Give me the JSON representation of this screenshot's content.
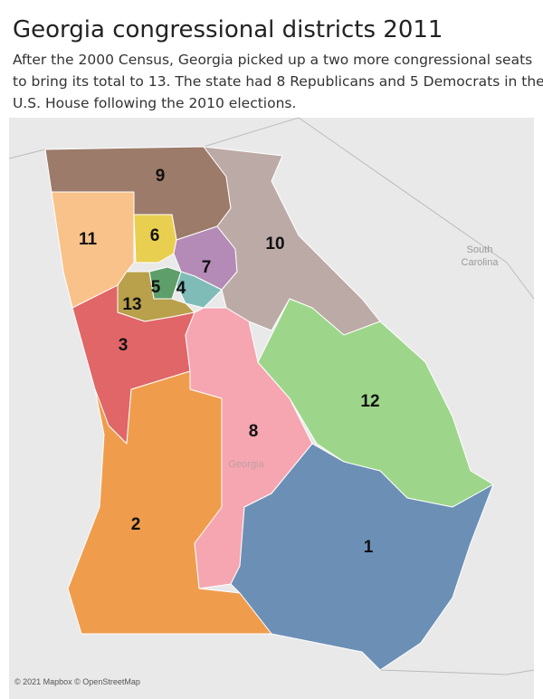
{
  "header": {
    "title": "Georgia congressional districts 2011",
    "subtitle_lines": [
      "After the 2000 Census, Georgia picked up a two more congressional seats",
      "to bring its total to 13. The state had 8 Republicans and 5 Democrats in the",
      "U.S. House following the 2010 elections."
    ]
  },
  "map": {
    "districts": [
      {
        "label": "1"
      },
      {
        "label": "2"
      },
      {
        "label": "3"
      },
      {
        "label": "4"
      },
      {
        "label": "5"
      },
      {
        "label": "6"
      },
      {
        "label": "7"
      },
      {
        "label": "8"
      },
      {
        "label": "9"
      },
      {
        "label": "10"
      },
      {
        "label": "11"
      },
      {
        "label": "12"
      },
      {
        "label": "13"
      }
    ],
    "place_labels": [
      "South",
      "Carolina",
      "Georgia"
    ],
    "attribution": "© 2021 Mapbox © OpenStreetMap"
  }
}
